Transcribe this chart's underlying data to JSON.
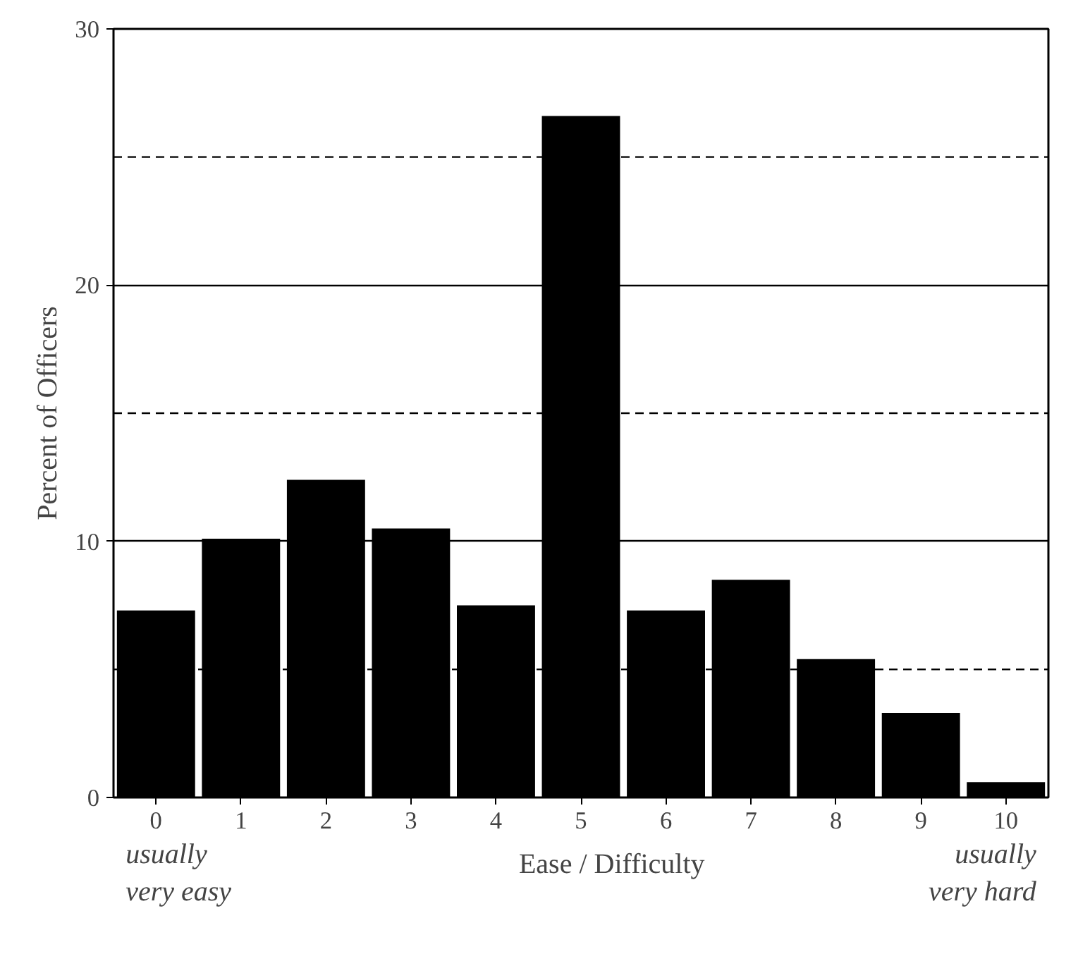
{
  "chart_data": {
    "type": "bar",
    "ylabel": "Percent of Officers",
    "xlabel": "Ease / Difficulty",
    "categories": [
      "0",
      "1",
      "2",
      "3",
      "4",
      "5",
      "6",
      "7",
      "8",
      "9",
      "10"
    ],
    "values": [
      7.3,
      10.1,
      12.4,
      10.5,
      7.5,
      26.6,
      7.3,
      8.5,
      5.4,
      3.3,
      0.6
    ],
    "color": "#000000",
    "ylim": [
      0,
      30
    ],
    "yticks": [
      0,
      10,
      20,
      30
    ],
    "grid": "y",
    "ref_lines": [
      {
        "axis": "y",
        "value": 5,
        "line_style": "dashed"
      },
      {
        "axis": "y",
        "value": 15,
        "line_style": "dashed"
      },
      {
        "axis": "y",
        "value": 25,
        "line_style": "dashed"
      }
    ],
    "annotations": [
      "usually\nvery easy",
      "usually\nvery hard"
    ]
  }
}
